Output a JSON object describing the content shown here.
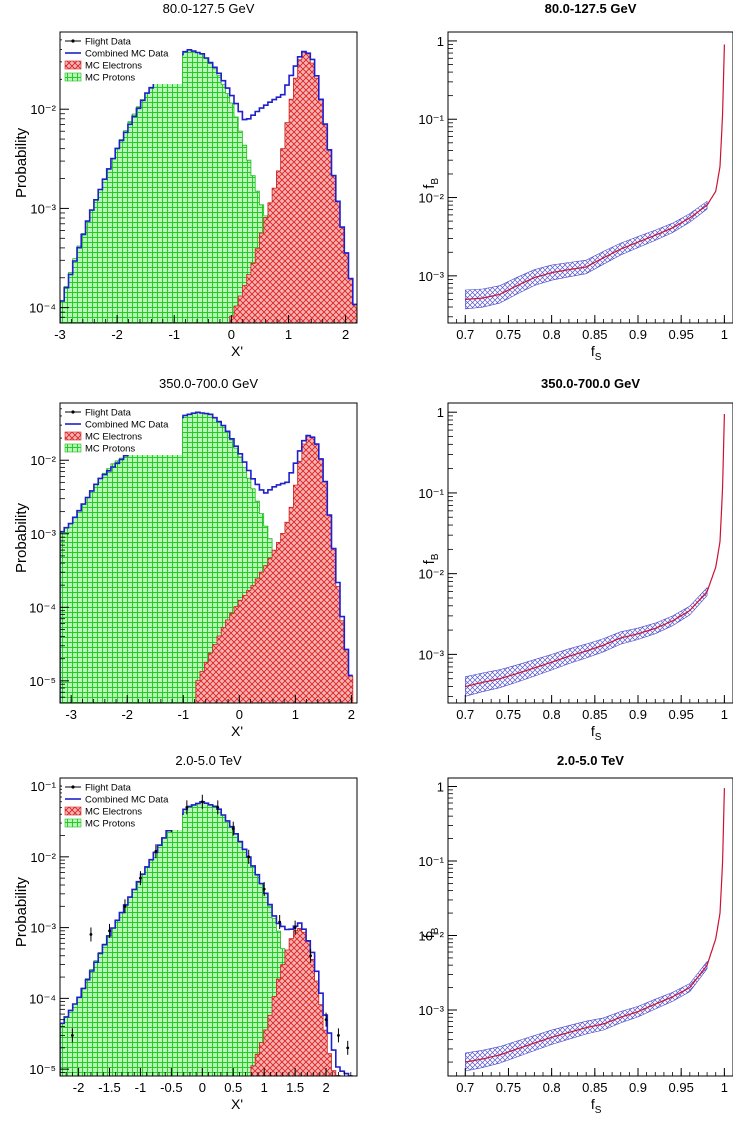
{
  "figure": {
    "legend_entries": [
      "Flight Data",
      "Combined MC Data",
      "MC Electrons",
      "MC Protons"
    ],
    "colors": {
      "flight_data": "#000000",
      "combined_mc": "#1f1fcc",
      "electrons": "#dd2222",
      "protons": "#22dd22",
      "curve": "#cc1133",
      "band": "#3333cc"
    }
  },
  "chart_data": [
    {
      "type": "area",
      "title": "80.0-127.5 GeV",
      "xlabel": "X'",
      "ylabel": "Probability",
      "ylog": true,
      "xlim": [
        -3.0,
        2.2
      ],
      "ylim": [
        7e-05,
        0.06
      ],
      "xticks": [
        -3,
        -2,
        -1,
        0,
        1,
        2
      ],
      "xtick_labels": [
        "-3",
        "-2",
        "-1",
        "0",
        "1",
        "2"
      ],
      "yticks": [
        0.0001,
        0.001,
        0.01
      ],
      "ytick_labels": [
        "10⁻⁴",
        "10⁻³",
        "10⁻²"
      ],
      "legend": "top-left",
      "series": [
        {
          "name": "MC Protons",
          "x": [
            -3.0,
            -2.75,
            -2.5,
            -2.25,
            -2.0,
            -1.75,
            -1.5,
            -1.25,
            -1.0,
            -0.75,
            -0.5,
            -0.25,
            0.0,
            0.25,
            0.5,
            0.7,
            0.8,
            1.0
          ],
          "values": [
            0.0001,
            0.0003,
            0.0008,
            0.0018,
            0.004,
            0.008,
            0.014,
            0.022,
            0.032,
            0.04,
            0.036,
            0.024,
            0.012,
            0.004,
            0.0012,
            0.0006,
            0.0002,
            7e-05
          ]
        },
        {
          "name": "MC Electrons",
          "x": [
            0.0,
            0.2,
            0.4,
            0.6,
            0.8,
            0.9,
            1.0,
            1.1,
            1.2,
            1.3,
            1.4,
            1.5,
            1.6,
            1.7,
            1.8,
            1.9,
            2.0,
            2.1,
            2.2
          ],
          "values": [
            8e-05,
            0.00015,
            0.0003,
            0.0008,
            0.002,
            0.004,
            0.009,
            0.018,
            0.032,
            0.04,
            0.032,
            0.02,
            0.01,
            0.0045,
            0.002,
            0.0009,
            0.0004,
            0.00018,
            8e-05
          ]
        },
        {
          "name": "Combined MC Data",
          "x": [
            -3.0,
            -2.5,
            -2.0,
            -1.5,
            -1.0,
            -0.75,
            -0.5,
            -0.25,
            0.0,
            0.25,
            0.5,
            0.7,
            0.9,
            1.05,
            1.2,
            1.3,
            1.45,
            1.6,
            1.8,
            2.0,
            2.2
          ],
          "values": [
            0.0001,
            0.0008,
            0.004,
            0.014,
            0.032,
            0.04,
            0.036,
            0.025,
            0.014,
            0.0075,
            0.01,
            0.012,
            0.014,
            0.022,
            0.034,
            0.04,
            0.03,
            0.01,
            0.002,
            0.0004,
            8e-05
          ]
        }
      ]
    },
    {
      "type": "line",
      "title": "80.0-127.5 GeV",
      "xlabel": "fS",
      "ylabel": "fB",
      "ylog": true,
      "xlim": [
        0.68,
        1.01
      ],
      "ylim": [
        0.00025,
        1.3
      ],
      "xticks": [
        0.7,
        0.75,
        0.8,
        0.85,
        0.9,
        0.95,
        1.0
      ],
      "xtick_labels": [
        "0.7",
        "0.75",
        "0.8",
        "0.85",
        "0.9",
        "0.95",
        "1"
      ],
      "yticks": [
        0.001,
        0.01,
        0.1,
        1
      ],
      "ytick_labels": [
        "10⁻³",
        "10⁻²",
        "10⁻¹",
        "1"
      ],
      "series": [
        {
          "name": "",
          "x": [
            0.7,
            0.72,
            0.74,
            0.76,
            0.78,
            0.8,
            0.82,
            0.84,
            0.86,
            0.88,
            0.9,
            0.92,
            0.94,
            0.96,
            0.98,
            0.99,
            0.995,
            0.998,
            1.0
          ],
          "values": [
            0.0005,
            0.00052,
            0.00058,
            0.00075,
            0.00095,
            0.0011,
            0.0012,
            0.0013,
            0.0017,
            0.0022,
            0.0027,
            0.0033,
            0.0041,
            0.0055,
            0.008,
            0.012,
            0.025,
            0.12,
            0.9
          ]
        }
      ]
    },
    {
      "type": "area",
      "title": "350.0-700.0 GeV",
      "xlabel": "X'",
      "ylabel": "Probability",
      "ylog": true,
      "xlim": [
        -3.2,
        2.1
      ],
      "ylim": [
        5e-06,
        0.06
      ],
      "xticks": [
        -3,
        -2,
        -1,
        0,
        1,
        2
      ],
      "xtick_labels": [
        "-3",
        "-2",
        "-1",
        "0",
        "1",
        "2"
      ],
      "yticks": [
        1e-05,
        0.0001,
        0.001,
        0.01
      ],
      "ytick_labels": [
        "10⁻⁵",
        "10⁻⁴",
        "10⁻³",
        "10⁻²"
      ],
      "legend": "top-left",
      "series": [
        {
          "name": "MC Protons",
          "x": [
            -3.2,
            -3.0,
            -2.75,
            -2.5,
            -2.25,
            -2.0,
            -1.75,
            -1.5,
            -1.25,
            -1.0,
            -0.75,
            -0.5,
            -0.25,
            0.0,
            0.25,
            0.5,
            0.75,
            0.9,
            1.0
          ],
          "values": [
            0.001,
            0.0014,
            0.0028,
            0.0055,
            0.009,
            0.012,
            0.016,
            0.022,
            0.03,
            0.04,
            0.045,
            0.042,
            0.028,
            0.012,
            0.004,
            0.0011,
            0.0003,
            5e-05,
            5e-06
          ]
        },
        {
          "name": "MC Electrons",
          "x": [
            -0.8,
            -0.5,
            -0.25,
            0.0,
            0.25,
            0.5,
            0.75,
            0.9,
            1.0,
            1.1,
            1.2,
            1.35,
            1.5,
            1.6,
            1.7,
            1.8,
            1.9,
            2.0,
            2.05
          ],
          "values": [
            8e-06,
            2.5e-05,
            6e-05,
            0.00012,
            0.0002,
            0.0004,
            0.0009,
            0.0018,
            0.0045,
            0.012,
            0.022,
            0.02,
            0.008,
            0.002,
            0.0005,
            0.0001,
            3e-05,
            1e-05,
            6e-06
          ]
        },
        {
          "name": "Combined MC Data",
          "x": [
            -3.2,
            -3.0,
            -2.5,
            -2.0,
            -1.5,
            -1.0,
            -0.75,
            -0.5,
            -0.25,
            0.0,
            0.25,
            0.45,
            0.65,
            0.85,
            1.0,
            1.1,
            1.2,
            1.35,
            1.5,
            1.7,
            1.9,
            2.05
          ],
          "values": [
            0.001,
            0.0014,
            0.0055,
            0.012,
            0.022,
            0.04,
            0.045,
            0.042,
            0.028,
            0.013,
            0.0055,
            0.0035,
            0.0045,
            0.005,
            0.009,
            0.015,
            0.022,
            0.02,
            0.008,
            0.0005,
            3e-05,
            6e-06
          ]
        }
      ]
    },
    {
      "type": "line",
      "title": "350.0-700.0 GeV",
      "xlabel": "fS",
      "ylabel": "fB",
      "ylog": true,
      "xlim": [
        0.68,
        1.01
      ],
      "ylim": [
        0.00025,
        1.3
      ],
      "xticks": [
        0.7,
        0.75,
        0.8,
        0.85,
        0.9,
        0.95,
        1.0
      ],
      "xtick_labels": [
        "0.7",
        "0.75",
        "0.8",
        "0.85",
        "0.9",
        "0.95",
        "1"
      ],
      "yticks": [
        0.001,
        0.01,
        0.1,
        1
      ],
      "ytick_labels": [
        "10⁻³",
        "10⁻²",
        "10⁻¹",
        "1"
      ],
      "series": [
        {
          "name": "",
          "x": [
            0.7,
            0.72,
            0.74,
            0.76,
            0.78,
            0.8,
            0.82,
            0.84,
            0.86,
            0.88,
            0.9,
            0.92,
            0.94,
            0.96,
            0.98,
            0.99,
            0.995,
            0.998,
            1.0
          ],
          "values": [
            0.0004,
            0.00045,
            0.0005,
            0.00058,
            0.00068,
            0.0008,
            0.00095,
            0.0011,
            0.0013,
            0.0016,
            0.0018,
            0.0021,
            0.0026,
            0.0035,
            0.006,
            0.012,
            0.025,
            0.12,
            0.95
          ]
        }
      ]
    },
    {
      "type": "area",
      "title": "2.0-5.0 TeV",
      "xlabel": "X'",
      "ylabel": "Probability",
      "ylog": true,
      "xlim": [
        -2.3,
        2.5
      ],
      "ylim": [
        8e-06,
        0.13
      ],
      "xticks": [
        -2,
        -1.5,
        -1,
        -0.5,
        0,
        0.5,
        1,
        1.5,
        2
      ],
      "xtick_labels": [
        "-2",
        "-1.5",
        "-1",
        "-0.5",
        "0",
        "0.5",
        "1",
        "1.5",
        "2"
      ],
      "yticks": [
        1e-05,
        0.0001,
        0.001,
        0.01,
        0.1
      ],
      "ytick_labels": [
        "10⁻⁵",
        "10⁻⁴",
        "10⁻³",
        "10⁻²",
        "10⁻¹"
      ],
      "legend": "top-left",
      "series": [
        {
          "name": "MC Protons",
          "x": [
            -2.3,
            -2.0,
            -1.75,
            -1.5,
            -1.25,
            -1.0,
            -0.75,
            -0.5,
            -0.25,
            0.0,
            0.25,
            0.5,
            0.75,
            1.0,
            1.25,
            1.5,
            1.75
          ],
          "values": [
            4e-05,
            0.0001,
            0.0003,
            0.0008,
            0.002,
            0.005,
            0.012,
            0.028,
            0.05,
            0.06,
            0.05,
            0.025,
            0.01,
            0.0035,
            0.0008,
            8e-05,
            1e-05
          ]
        },
        {
          "name": "MC Electrons",
          "x": [
            0.8,
            1.0,
            1.1,
            1.2,
            1.3,
            1.4,
            1.5,
            1.6,
            1.7,
            1.8,
            1.9,
            2.0,
            2.1,
            2.2
          ],
          "values": [
            1e-05,
            3e-05,
            6e-05,
            0.00015,
            0.0003,
            0.0006,
            0.0009,
            0.001,
            0.0007,
            0.0003,
            0.0001,
            3e-05,
            1e-05,
            8e-06
          ]
        },
        {
          "name": "Combined MC Data",
          "x": [
            -2.3,
            -2.0,
            -1.5,
            -1.0,
            -0.5,
            -0.25,
            0.0,
            0.25,
            0.5,
            0.75,
            1.0,
            1.2,
            1.4,
            1.6,
            1.8,
            2.0,
            2.2,
            2.4
          ],
          "values": [
            4e-05,
            0.0001,
            0.0008,
            0.005,
            0.028,
            0.05,
            0.06,
            0.05,
            0.025,
            0.01,
            0.0035,
            0.0012,
            0.0009,
            0.0012,
            0.0004,
            5e-05,
            1e-05,
            8e-06
          ]
        },
        {
          "name": "Flight Data",
          "x": [
            -2.1,
            -1.8,
            -1.5,
            -1.25,
            -1.0,
            -0.75,
            -0.5,
            -0.25,
            0.0,
            0.25,
            0.5,
            0.75,
            1.0,
            1.25,
            1.5,
            1.75,
            2.0,
            2.2,
            2.35
          ],
          "values": [
            3e-05,
            0.0008,
            0.0009,
            0.002,
            0.005,
            0.012,
            0.028,
            0.05,
            0.06,
            0.05,
            0.025,
            0.01,
            0.0035,
            0.0012,
            0.001,
            0.0004,
            5e-05,
            3e-05,
            2e-05
          ]
        }
      ]
    },
    {
      "type": "line",
      "title": "2.0-5.0 TeV",
      "xlabel": "fS",
      "ylabel": "fB",
      "ylog": true,
      "xlim": [
        0.68,
        1.01
      ],
      "ylim": [
        0.00013,
        1.3
      ],
      "xticks": [
        0.7,
        0.75,
        0.8,
        0.85,
        0.9,
        0.95,
        1.0
      ],
      "xtick_labels": [
        "0.7",
        "0.75",
        "0.8",
        "0.85",
        "0.9",
        "0.95",
        "1"
      ],
      "yticks": [
        0.001,
        0.01,
        0.1,
        1
      ],
      "ytick_labels": [
        "10⁻³",
        "10⁻²",
        "10⁻¹",
        "1"
      ],
      "series": [
        {
          "name": "",
          "x": [
            0.7,
            0.72,
            0.74,
            0.76,
            0.78,
            0.8,
            0.82,
            0.84,
            0.86,
            0.88,
            0.9,
            0.92,
            0.94,
            0.96,
            0.98,
            0.99,
            0.995,
            0.998,
            1.0
          ],
          "values": [
            0.0002,
            0.00022,
            0.00025,
            0.0003,
            0.00036,
            0.00043,
            0.0005,
            0.00058,
            0.00065,
            0.0008,
            0.00095,
            0.0012,
            0.0015,
            0.002,
            0.004,
            0.009,
            0.02,
            0.1,
            0.95
          ]
        }
      ]
    }
  ]
}
